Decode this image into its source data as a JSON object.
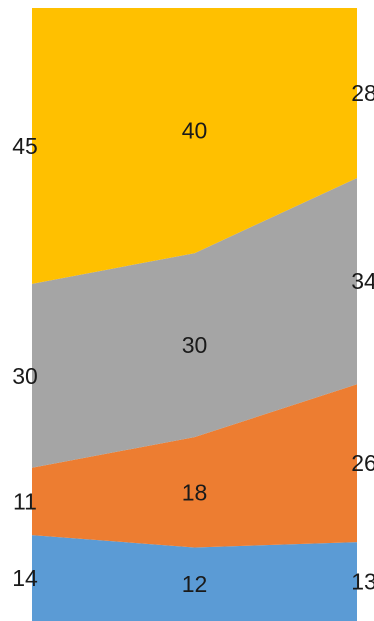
{
  "chart_data": {
    "type": "area",
    "stacked": true,
    "percent_stacked": true,
    "categories": [
      "",
      "",
      ""
    ],
    "series": [
      {
        "values": [
          14,
          12,
          13
        ],
        "color": "#5b9bd5"
      },
      {
        "values": [
          11,
          18,
          26
        ],
        "color": "#ed7d31"
      },
      {
        "values": [
          30,
          30,
          34
        ],
        "color": "#a5a5a5"
      },
      {
        "values": [
          45,
          40,
          28
        ],
        "color": "#ffc000"
      }
    ],
    "ylim": [
      0,
      100
    ],
    "grid": false,
    "legend": "none",
    "data_labels": true
  }
}
